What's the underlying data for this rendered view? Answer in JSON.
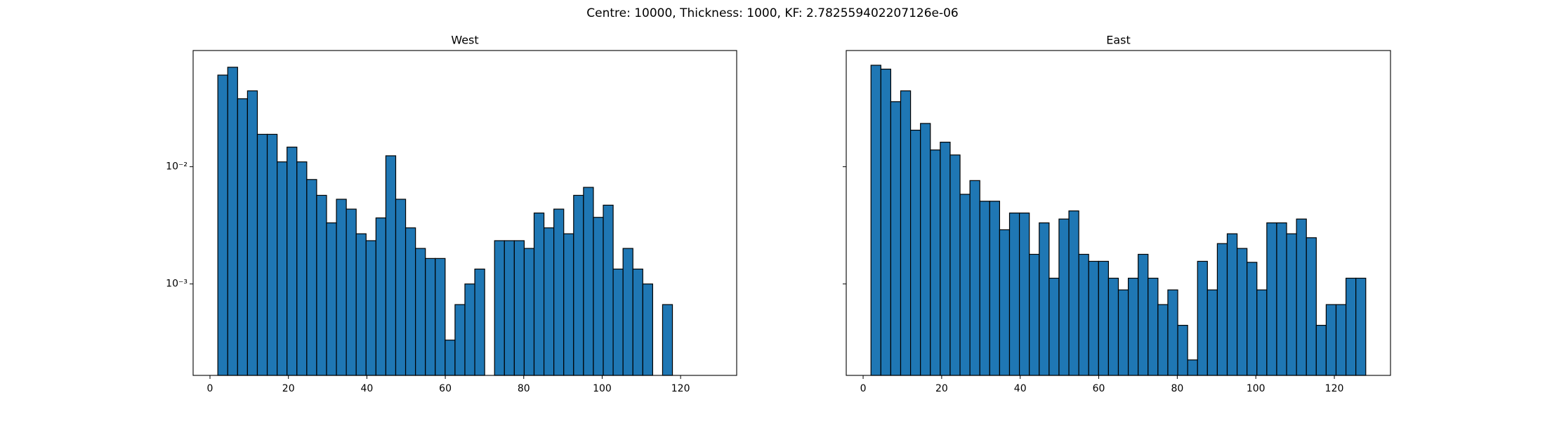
{
  "title": "Centre: 10000, Thickness: 1000, KF: 2.782559402207126e-06",
  "chart_data": [
    {
      "type": "histogram",
      "title": "West",
      "color": "#1f77b4",
      "edgecolor": "#000000",
      "log_y": true,
      "bins": [
        2,
        4.52,
        7.04,
        9.56,
        12.08,
        14.6,
        17.12,
        19.64,
        22.16,
        24.68,
        27.2,
        29.72,
        32.24,
        34.76,
        37.28,
        39.8,
        42.32,
        44.84,
        47.36,
        49.88,
        52.4,
        54.92,
        57.44,
        59.96,
        62.48,
        65,
        67.52,
        70.04,
        72.56,
        75.08,
        77.6,
        80.12,
        82.64,
        85.16,
        87.68,
        90.2,
        92.72,
        95.24,
        97.76,
        100.28,
        102.8,
        105.32,
        107.84,
        110.36,
        112.88,
        115.4,
        117.92,
        120.44,
        122.96,
        125.48,
        128
      ],
      "values": [
        0.0605,
        0.0706,
        0.038,
        0.0444,
        0.0189,
        0.0189,
        0.011,
        0.0147,
        0.011,
        0.00778,
        0.0057,
        0.00332,
        0.00528,
        0.00435,
        0.00268,
        0.00234,
        0.00366,
        0.0124,
        0.00528,
        0.00301,
        0.00201,
        0.00165,
        0.00165,
        0.000332,
        0.000667,
        0.001,
        0.00134,
        0,
        0.00234,
        0.00234,
        0.00234,
        0.00201,
        0.00403,
        0.00301,
        0.00435,
        0.00268,
        0.0057,
        0.00667,
        0.0037,
        0.0047,
        0.00134,
        0.00201,
        0.00134,
        0.001,
        0,
        0.000667,
        0,
        0,
        0,
        0
      ],
      "xlim": [
        -4.3,
        134.3
      ],
      "xticks": [
        0,
        20,
        40,
        60,
        80,
        100,
        120
      ],
      "ylim": [
        0.000166,
        0.098
      ],
      "yticks": [
        {
          "value": 0.01,
          "label": "10⁻²"
        },
        {
          "value": 0.001,
          "label": "10⁻³"
        }
      ]
    },
    {
      "type": "histogram",
      "title": "East",
      "color": "#1f77b4",
      "edgecolor": "#000000",
      "log_y": true,
      "bins": [
        2,
        4.52,
        7.04,
        9.56,
        12.08,
        14.6,
        17.12,
        19.64,
        22.16,
        24.68,
        27.2,
        29.72,
        32.24,
        34.76,
        37.28,
        39.8,
        42.32,
        44.84,
        47.36,
        49.88,
        52.4,
        54.92,
        57.44,
        59.96,
        62.48,
        65,
        67.52,
        70.04,
        72.56,
        75.08,
        77.6,
        80.12,
        82.64,
        85.16,
        87.68,
        90.2,
        92.72,
        95.24,
        97.76,
        100.28,
        102.8,
        105.32,
        107.84,
        110.36,
        112.88,
        115.4,
        117.92,
        120.44,
        122.96,
        125.48,
        128
      ],
      "values": [
        0.0734,
        0.068,
        0.0359,
        0.0444,
        0.0205,
        0.0234,
        0.0139,
        0.0162,
        0.0126,
        0.00582,
        0.00762,
        0.00508,
        0.00508,
        0.0029,
        0.00403,
        0.00403,
        0.00179,
        0.00332,
        0.00112,
        0.00358,
        0.0042,
        0.00179,
        0.00156,
        0.00156,
        0.00112,
        0.00089,
        0.00112,
        0.00179,
        0.00112,
        0.000667,
        0.00089,
        0.000444,
        0.000225,
        0.00156,
        0.00089,
        0.00221,
        0.00268,
        0.00201,
        0.00153,
        0.00089,
        0.00332,
        0.00332,
        0.00268,
        0.00358,
        0.00248,
        0.000444,
        0.000667,
        0.000667,
        0.00112,
        0.00112
      ],
      "xlim": [
        -4.3,
        134.3
      ],
      "xticks": [
        0,
        20,
        40,
        60,
        80,
        100,
        120
      ],
      "ylim": [
        0.000166,
        0.098
      ],
      "yticks": [
        0.01,
        0.001
      ]
    }
  ]
}
